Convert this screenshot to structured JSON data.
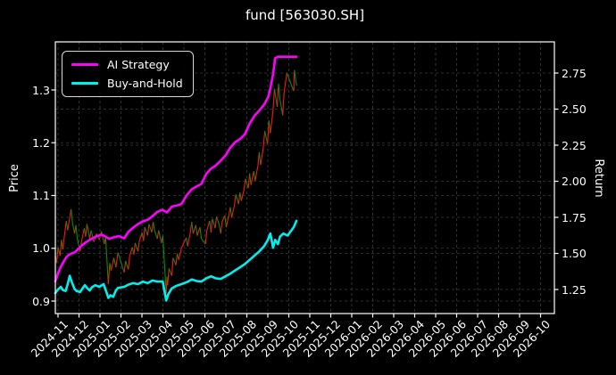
{
  "window": {
    "title": "fund [563030.SH]"
  },
  "colors": {
    "background": "#000000",
    "text": "#ffffff",
    "grid": "#3b3b3b",
    "spine": "#ffffff",
    "ai_strategy": "#ff00ff",
    "buy_and_hold": "#00efef",
    "price_up": "#ff1414",
    "price_down": "#009400"
  },
  "chart_data": {
    "type": "line",
    "title": "fund [563030.SH]",
    "grid": true,
    "x_axis": {
      "tick_rotation_deg": 45,
      "tick_labels": [
        "2024-11",
        "2024-12",
        "2025-01",
        "2025-02",
        "2025-03",
        "2025-04",
        "2025-05",
        "2025-06",
        "2025-07",
        "2025-08",
        "2025-09",
        "2025-10",
        "2025-11",
        "2025-12",
        "2026-01",
        "2026-02",
        "2026-03",
        "2026-04",
        "2026-05",
        "2026-06",
        "2026-07",
        "2026-08",
        "2026-09",
        "2026-10"
      ]
    },
    "y_axis_left": {
      "label": "Price",
      "tick_labels": [
        "0.9",
        "1.0",
        "1.1",
        "1.2",
        "1.3"
      ],
      "range": [
        0.876,
        1.391
      ]
    },
    "y_axis_right": {
      "label": "Return",
      "tick_labels": [
        "1.25",
        "1.50",
        "1.75",
        "2.00",
        "2.25",
        "2.50",
        "2.75"
      ],
      "range": [
        1.083,
        2.966
      ]
    },
    "legend": {
      "position": "upper-left",
      "entries": [
        {
          "label": "AI Strategy",
          "color": "#ff00ff"
        },
        {
          "label": "Buy-and-Hold",
          "color": "#00efef"
        }
      ]
    },
    "series": [
      {
        "name": "AI Strategy",
        "style": "line",
        "color": "#ff00ff",
        "width": 2.6,
        "value_axis": "left (Price scale)",
        "points": [
          [
            "2024-10-28",
            0.937
          ],
          [
            "2024-11-01",
            0.953
          ],
          [
            "2024-11-05",
            0.965
          ],
          [
            "2024-11-08",
            0.972
          ],
          [
            "2024-11-12",
            0.981
          ],
          [
            "2024-11-15",
            0.986
          ],
          [
            "2024-11-20",
            0.99
          ],
          [
            "2024-11-26",
            0.993
          ],
          [
            "2024-12-02",
            1.001
          ],
          [
            "2024-12-06",
            1.006
          ],
          [
            "2024-12-11",
            1.011
          ],
          [
            "2024-12-17",
            1.016
          ],
          [
            "2024-12-24",
            1.021
          ],
          [
            "2025-01-03",
            1.026
          ],
          [
            "2025-01-09",
            1.022
          ],
          [
            "2025-01-14",
            1.018
          ],
          [
            "2025-01-21",
            1.021
          ],
          [
            "2025-01-28",
            1.023
          ],
          [
            "2025-02-05",
            1.019
          ],
          [
            "2025-02-11",
            1.031
          ],
          [
            "2025-02-18",
            1.039
          ],
          [
            "2025-02-25",
            1.046
          ],
          [
            "2025-03-04",
            1.051
          ],
          [
            "2025-03-11",
            1.054
          ],
          [
            "2025-03-18",
            1.061
          ],
          [
            "2025-03-25",
            1.069
          ],
          [
            "2025-04-01",
            1.073
          ],
          [
            "2025-04-08",
            1.068
          ],
          [
            "2025-04-15",
            1.079
          ],
          [
            "2025-04-22",
            1.081
          ],
          [
            "2025-04-29",
            1.084
          ],
          [
            "2025-05-07",
            1.101
          ],
          [
            "2025-05-14",
            1.112
          ],
          [
            "2025-05-21",
            1.117
          ],
          [
            "2025-05-28",
            1.122
          ],
          [
            "2025-06-04",
            1.141
          ],
          [
            "2025-06-11",
            1.151
          ],
          [
            "2025-06-18",
            1.157
          ],
          [
            "2025-06-25",
            1.166
          ],
          [
            "2025-07-02",
            1.176
          ],
          [
            "2025-07-09",
            1.191
          ],
          [
            "2025-07-16",
            1.201
          ],
          [
            "2025-07-23",
            1.207
          ],
          [
            "2025-07-30",
            1.216
          ],
          [
            "2025-08-06",
            1.236
          ],
          [
            "2025-08-13",
            1.251
          ],
          [
            "2025-08-20",
            1.261
          ],
          [
            "2025-08-27",
            1.272
          ],
          [
            "2025-09-02",
            1.287
          ],
          [
            "2025-09-05",
            1.303
          ],
          [
            "2025-09-09",
            1.33
          ],
          [
            "2025-09-12",
            1.36
          ],
          [
            "2025-09-16",
            1.363
          ],
          [
            "2025-10-13",
            1.363
          ]
        ]
      },
      {
        "name": "Buy-and-Hold",
        "style": "line",
        "color": "#00efef",
        "width": 2.6,
        "value_axis": "left (Price scale)",
        "points": [
          [
            "2024-10-28",
            0.915
          ],
          [
            "2024-11-01",
            0.922
          ],
          [
            "2024-11-05",
            0.927
          ],
          [
            "2024-11-08",
            0.921
          ],
          [
            "2024-11-12",
            0.919
          ],
          [
            "2024-11-15",
            0.932
          ],
          [
            "2024-11-18",
            0.948
          ],
          [
            "2024-11-21",
            0.936
          ],
          [
            "2024-11-25",
            0.923
          ],
          [
            "2024-11-28",
            0.919
          ],
          [
            "2024-12-03",
            0.917
          ],
          [
            "2024-12-06",
            0.923
          ],
          [
            "2024-12-10",
            0.93
          ],
          [
            "2024-12-13",
            0.925
          ],
          [
            "2024-12-17",
            0.92
          ],
          [
            "2024-12-20",
            0.926
          ],
          [
            "2024-12-25",
            0.93
          ],
          [
            "2024-12-31",
            0.927
          ],
          [
            "2025-01-06",
            0.932
          ],
          [
            "2025-01-10",
            0.918
          ],
          [
            "2025-01-13",
            0.906
          ],
          [
            "2025-01-16",
            0.911
          ],
          [
            "2025-01-20",
            0.908
          ],
          [
            "2025-01-24",
            0.92
          ],
          [
            "2025-01-27",
            0.925
          ],
          [
            "2025-02-05",
            0.927
          ],
          [
            "2025-02-11",
            0.931
          ],
          [
            "2025-02-18",
            0.934
          ],
          [
            "2025-02-25",
            0.932
          ],
          [
            "2025-03-04",
            0.937
          ],
          [
            "2025-03-11",
            0.934
          ],
          [
            "2025-03-18",
            0.939
          ],
          [
            "2025-03-25",
            0.937
          ],
          [
            "2025-04-02",
            0.937
          ],
          [
            "2025-04-07",
            0.901
          ],
          [
            "2025-04-10",
            0.913
          ],
          [
            "2025-04-15",
            0.924
          ],
          [
            "2025-04-22",
            0.929
          ],
          [
            "2025-04-29",
            0.932
          ],
          [
            "2025-05-07",
            0.936
          ],
          [
            "2025-05-14",
            0.941
          ],
          [
            "2025-05-21",
            0.938
          ],
          [
            "2025-05-28",
            0.937
          ],
          [
            "2025-06-04",
            0.943
          ],
          [
            "2025-06-11",
            0.947
          ],
          [
            "2025-06-18",
            0.943
          ],
          [
            "2025-06-25",
            0.942
          ],
          [
            "2025-07-02",
            0.947
          ],
          [
            "2025-07-09",
            0.952
          ],
          [
            "2025-07-16",
            0.958
          ],
          [
            "2025-07-23",
            0.964
          ],
          [
            "2025-07-30",
            0.97
          ],
          [
            "2025-08-06",
            0.978
          ],
          [
            "2025-08-13",
            0.986
          ],
          [
            "2025-08-20",
            0.994
          ],
          [
            "2025-08-27",
            1.004
          ],
          [
            "2025-09-01",
            1.015
          ],
          [
            "2025-09-05",
            1.028
          ],
          [
            "2025-09-09",
            1.001
          ],
          [
            "2025-09-12",
            1.016
          ],
          [
            "2025-09-16",
            1.008
          ],
          [
            "2025-09-19",
            1.022
          ],
          [
            "2025-09-24",
            1.028
          ],
          [
            "2025-09-30",
            1.024
          ],
          [
            "2025-10-09",
            1.04
          ],
          [
            "2025-10-13",
            1.052
          ]
        ]
      },
      {
        "name": "fund daily price",
        "style": "updown-line",
        "up_color": "#ff1414",
        "down_color": "#009400",
        "width": 1.1,
        "value_axis": "left (Price scale)",
        "points": [
          [
            "2024-10-28",
            0.988
          ],
          [
            "2024-10-30",
            0.972
          ],
          [
            "2024-11-01",
            1.002
          ],
          [
            "2024-11-04",
            0.986
          ],
          [
            "2024-11-06",
            1.016
          ],
          [
            "2024-11-08",
            0.998
          ],
          [
            "2024-11-11",
            1.032
          ],
          [
            "2024-11-13",
            1.052
          ],
          [
            "2024-11-15",
            1.034
          ],
          [
            "2024-11-18",
            1.058
          ],
          [
            "2024-11-20",
            1.074
          ],
          [
            "2024-11-22",
            1.048
          ],
          [
            "2024-11-25",
            1.028
          ],
          [
            "2024-11-27",
            1.044
          ],
          [
            "2024-11-29",
            1.018
          ],
          [
            "2024-12-03",
            0.994
          ],
          [
            "2024-12-05",
            1.012
          ],
          [
            "2024-12-09",
            1.038
          ],
          [
            "2024-12-11",
            1.022
          ],
          [
            "2024-12-13",
            1.046
          ],
          [
            "2024-12-17",
            1.018
          ],
          [
            "2024-12-19",
            1.034
          ],
          [
            "2024-12-23",
            1.012
          ],
          [
            "2024-12-27",
            1.028
          ],
          [
            "2024-12-31",
            1.016
          ],
          [
            "2025-01-03",
            1.032
          ],
          [
            "2025-01-07",
            1.008
          ],
          [
            "2025-01-09",
            1.022
          ],
          [
            "2025-01-13",
            0.932
          ],
          [
            "2025-01-15",
            0.972
          ],
          [
            "2025-01-17",
            0.958
          ],
          [
            "2025-01-21",
            0.982
          ],
          [
            "2025-01-24",
            0.964
          ],
          [
            "2025-01-27",
            0.992
          ],
          [
            "2025-02-05",
            0.954
          ],
          [
            "2025-02-07",
            0.976
          ],
          [
            "2025-02-11",
            0.96
          ],
          [
            "2025-02-13",
            0.986
          ],
          [
            "2025-02-17",
            1.002
          ],
          [
            "2025-02-19",
            0.988
          ],
          [
            "2025-02-21",
            1.01
          ],
          [
            "2025-02-25",
            0.994
          ],
          [
            "2025-02-27",
            1.014
          ],
          [
            "2025-03-03",
            1.03
          ],
          [
            "2025-03-05",
            1.014
          ],
          [
            "2025-03-07",
            1.04
          ],
          [
            "2025-03-11",
            1.024
          ],
          [
            "2025-03-13",
            1.046
          ],
          [
            "2025-03-17",
            1.03
          ],
          [
            "2025-03-19",
            1.05
          ],
          [
            "2025-03-21",
            1.034
          ],
          [
            "2025-03-25",
            1.018
          ],
          [
            "2025-03-27",
            1.034
          ],
          [
            "2025-03-31",
            1.01
          ],
          [
            "2025-04-02",
            1.024
          ],
          [
            "2025-04-07",
            0.915
          ],
          [
            "2025-04-08",
            0.946
          ],
          [
            "2025-04-09",
            0.93
          ],
          [
            "2025-04-11",
            0.962
          ],
          [
            "2025-04-15",
            0.948
          ],
          [
            "2025-04-17",
            0.982
          ],
          [
            "2025-04-21",
            0.968
          ],
          [
            "2025-04-23",
            0.99
          ],
          [
            "2025-04-25",
            0.978
          ],
          [
            "2025-04-29",
            1.0
          ],
          [
            "2025-05-06",
            1.02
          ],
          [
            "2025-05-08",
            1.004
          ],
          [
            "2025-05-12",
            1.03
          ],
          [
            "2025-05-14",
            1.05
          ],
          [
            "2025-05-16",
            1.028
          ],
          [
            "2025-05-20",
            1.044
          ],
          [
            "2025-05-22",
            1.024
          ],
          [
            "2025-05-26",
            1.04
          ],
          [
            "2025-05-28",
            1.018
          ],
          [
            "2025-06-03",
            1.008
          ],
          [
            "2025-06-05",
            1.034
          ],
          [
            "2025-06-09",
            1.052
          ],
          [
            "2025-06-11",
            1.03
          ],
          [
            "2025-06-13",
            1.056
          ],
          [
            "2025-06-17",
            1.038
          ],
          [
            "2025-06-19",
            1.06
          ],
          [
            "2025-06-23",
            1.044
          ],
          [
            "2025-06-25",
            1.028
          ],
          [
            "2025-06-27",
            1.05
          ],
          [
            "2025-07-01",
            1.062
          ],
          [
            "2025-07-03",
            1.04
          ],
          [
            "2025-07-07",
            1.064
          ],
          [
            "2025-07-09",
            1.078
          ],
          [
            "2025-07-11",
            1.058
          ],
          [
            "2025-07-15",
            1.082
          ],
          [
            "2025-07-17",
            1.102
          ],
          [
            "2025-07-21",
            1.084
          ],
          [
            "2025-07-23",
            1.106
          ],
          [
            "2025-07-25",
            1.09
          ],
          [
            "2025-07-29",
            1.112
          ],
          [
            "2025-07-31",
            1.132
          ],
          [
            "2025-08-04",
            1.114
          ],
          [
            "2025-08-06",
            1.142
          ],
          [
            "2025-08-08",
            1.12
          ],
          [
            "2025-08-12",
            1.146
          ],
          [
            "2025-08-14",
            1.128
          ],
          [
            "2025-08-18",
            1.156
          ],
          [
            "2025-08-20",
            1.182
          ],
          [
            "2025-08-22",
            1.158
          ],
          [
            "2025-08-26",
            1.192
          ],
          [
            "2025-08-28",
            1.222
          ],
          [
            "2025-09-01",
            1.198
          ],
          [
            "2025-09-03",
            1.242
          ],
          [
            "2025-09-05",
            1.218
          ],
          [
            "2025-09-09",
            1.262
          ],
          [
            "2025-09-11",
            1.302
          ],
          [
            "2025-09-15",
            1.268
          ],
          [
            "2025-09-17",
            1.312
          ],
          [
            "2025-09-19",
            1.282
          ],
          [
            "2025-09-23",
            1.252
          ],
          [
            "2025-09-25",
            1.295
          ],
          [
            "2025-09-29",
            1.332
          ],
          [
            "2025-10-09",
            1.298
          ],
          [
            "2025-10-10",
            1.338
          ],
          [
            "2025-10-13",
            1.308
          ]
        ]
      }
    ]
  }
}
